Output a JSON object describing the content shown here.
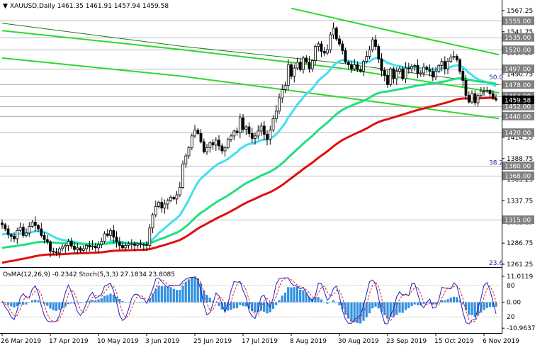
{
  "chart_data": {
    "type": "candlestick",
    "symbol_line": "XAUUSD,Daily  1461.35 1461.91 1457.94 1459.58",
    "osc_line": "OsMA(12,26,9) -0.2342   Stoch(5,3,3) 27.1834 23.8085",
    "price_axis": {
      "range": [
        1261.25,
        1580
      ],
      "ticks": [
        "1567.25",
        "1541.75",
        "1516.25",
        "1490.75",
        "1465.30",
        "1439.80",
        "1414.35",
        "1388.75",
        "1363.25",
        "1337.75",
        "1312.25",
        "1286.75",
        "1261.25"
      ],
      "tick_values": [
        1567.25,
        1541.75,
        1516.25,
        1490.75,
        1465.3,
        1439.8,
        1414.35,
        1388.75,
        1363.25,
        1337.75,
        1312.25,
        1286.75,
        1261.25
      ]
    },
    "osc_axis": {
      "range": [
        -13,
        14
      ],
      "ticks": [
        "11.0119",
        "0.00",
        "-10.9637"
      ],
      "tick_values": [
        11.0119,
        0.0,
        -10.9637
      ],
      "stoch_ticks": [
        "80",
        "20"
      ],
      "stoch_tick_values": [
        80,
        20
      ]
    },
    "levels": [
      {
        "label": "1555.00",
        "value": 1555.0
      },
      {
        "label": "1535.00",
        "value": 1535.0
      },
      {
        "label": "1520.00",
        "value": 1520.0
      },
      {
        "label": "1497.00",
        "value": 1497.0
      },
      {
        "label": "1478.00",
        "value": 1478.0
      },
      {
        "label": "1464.00",
        "value": 1464.0
      },
      {
        "label": "1452.00",
        "value": 1452.0
      },
      {
        "label": "1440.00",
        "value": 1440.0
      },
      {
        "label": "1420.00",
        "value": 1420.0
      },
      {
        "label": "1380.00",
        "value": 1380.0
      },
      {
        "label": "1368.00",
        "value": 1368.0
      },
      {
        "label": "1315.00",
        "value": 1315.0
      }
    ],
    "fib_labels": [
      {
        "label": "50.0",
        "value": 1487.0
      },
      {
        "label": "38.2",
        "value": 1384.0
      },
      {
        "label": "23.6",
        "value": 1263.0
      }
    ],
    "current_price": "1459.58",
    "current_value": 1459.58,
    "x_labels": [
      "26 Mar 2019",
      "17 Apr 2019",
      "10 May 2019",
      "3 Jun 2019",
      "25 Jun 2019",
      "17 Jul 2019",
      "8 Aug 2019",
      "30 Aug 2019",
      "23 Sep 2019",
      "15 Oct 2019",
      "6 Nov 2019"
    ],
    "x_label_index": [
      0,
      16,
      32,
      48,
      64,
      80,
      96,
      112,
      128,
      144,
      160
    ],
    "closes": [
      1309,
      1304,
      1297,
      1295,
      1292,
      1302,
      1306,
      1296,
      1299,
      1307,
      1312,
      1308,
      1304,
      1296,
      1291,
      1288,
      1277,
      1276,
      1275,
      1280,
      1282,
      1284,
      1289,
      1283,
      1279,
      1281,
      1278,
      1280,
      1284,
      1282,
      1283,
      1281,
      1285,
      1289,
      1298,
      1296,
      1302,
      1294,
      1288,
      1284,
      1281,
      1284,
      1286,
      1286,
      1284,
      1286,
      1285,
      1285,
      1284,
      1305,
      1321,
      1331,
      1336,
      1329,
      1334,
      1338,
      1342,
      1340,
      1345,
      1354,
      1382,
      1392,
      1402,
      1416,
      1423,
      1419,
      1409,
      1397,
      1402,
      1408,
      1405,
      1411,
      1404,
      1398,
      1402,
      1412,
      1416,
      1422,
      1420,
      1438,
      1424,
      1427,
      1419,
      1413,
      1416,
      1422,
      1428,
      1418,
      1412,
      1423,
      1437,
      1446,
      1462,
      1472,
      1477,
      1502,
      1488,
      1498,
      1505,
      1496,
      1510,
      1505,
      1497,
      1507,
      1524,
      1527,
      1518,
      1516,
      1520,
      1538,
      1546,
      1533,
      1527,
      1519,
      1505,
      1502,
      1497,
      1502,
      1496,
      1494,
      1506,
      1512,
      1520,
      1532,
      1524,
      1509,
      1495,
      1489,
      1478,
      1497,
      1485,
      1494,
      1497,
      1485,
      1498,
      1497,
      1500,
      1501,
      1491,
      1492,
      1499,
      1496,
      1494,
      1487,
      1494,
      1501,
      1506,
      1497,
      1506,
      1511,
      1512,
      1508,
      1494,
      1483,
      1465,
      1457,
      1467,
      1456,
      1465,
      1470,
      1470,
      1471,
      1467,
      1461,
      1459.58
    ],
    "series": [
      {
        "name": "EMA50",
        "color": "#40e0f0"
      },
      {
        "name": "EMA144",
        "color": "#20e080"
      },
      {
        "name": "EMA200",
        "color": "#e01010"
      },
      {
        "name": "OsMA",
        "color": "#3090e0"
      },
      {
        "name": "Stoch main",
        "color": "#2020c0"
      },
      {
        "name": "Stoch signal",
        "color": "#e02020"
      }
    ],
    "channel_lines": [
      {
        "color": "#2ed82e",
        "points": [
          [
            0,
            1543
          ],
          [
            60,
            1520
          ],
          [
            112,
            1498
          ],
          [
            165,
            1468
          ]
        ]
      },
      {
        "color": "#2ed82e",
        "points": [
          [
            0,
            1510
          ],
          [
            60,
            1488
          ],
          [
            112,
            1463
          ],
          [
            165,
            1437
          ]
        ]
      },
      {
        "color": "#1a7a1a",
        "points": [
          [
            0,
            1552
          ],
          [
            60,
            1524
          ],
          [
            112,
            1504
          ],
          [
            165,
            1478
          ]
        ]
      },
      {
        "color": "#2ed82e",
        "points": [
          [
            96,
            1570
          ],
          [
            130,
            1542
          ],
          [
            165,
            1514
          ]
        ]
      }
    ]
  },
  "colors": {
    "background": "#ffffff",
    "candle": "#000000",
    "level_box": "#808080",
    "current_box": "#000000",
    "osma_bar": "#3090e0"
  }
}
